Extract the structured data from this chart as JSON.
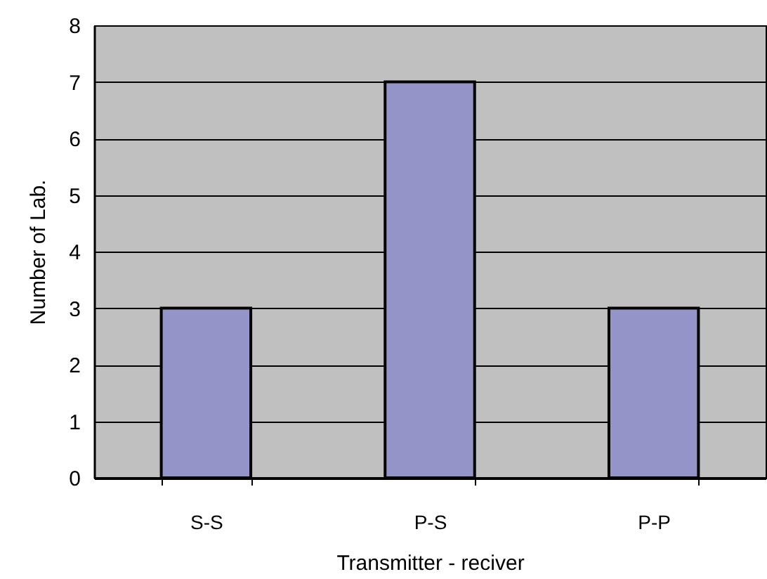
{
  "chart_data": {
    "type": "bar",
    "xlabel": "Transmitter - reciver",
    "ylabel": "Number of Lab.",
    "categories": [
      "S-S",
      "P-S",
      "P-P"
    ],
    "values": [
      3,
      7,
      3
    ],
    "color": "#9494c8",
    "ylim": [
      0,
      8
    ],
    "yticks": [
      0,
      1,
      2,
      3,
      4,
      5,
      6,
      7,
      8
    ],
    "grid": "y"
  }
}
